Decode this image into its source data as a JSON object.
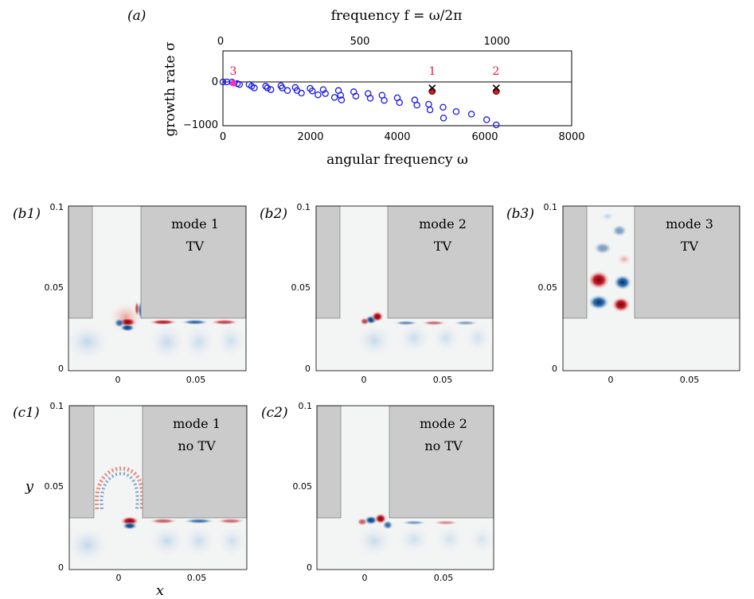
{
  "figure": {
    "panel_a": {
      "label": "(a)",
      "top_axis_label": "frequency f = ω/2π",
      "top_ticks": [
        "0",
        "500",
        "1000"
      ],
      "bottom_axis_label": "angular frequency ω",
      "bottom_ticks": [
        "0",
        "2000",
        "4000",
        "6000",
        "8000"
      ],
      "y_axis_label": "growth rate σ",
      "y_ticks": [
        "0",
        "−1000"
      ],
      "mode_labels": [
        "1",
        "2",
        "3"
      ],
      "colors": {
        "open_markers": "#1a1ae6",
        "mode_marker_red": "#d01c1c",
        "mode_cross": "#111111",
        "mode3_marker": "#ee33cc",
        "mode_label_text": "#e8163a"
      }
    },
    "panels": [
      {
        "label": "(b1)",
        "mode": "mode 1",
        "variant": "TV"
      },
      {
        "label": "(b2)",
        "mode": "mode 2",
        "variant": "TV"
      },
      {
        "label": "(b3)",
        "mode": "mode 3",
        "variant": "TV"
      },
      {
        "label": "(c1)",
        "mode": "mode 1",
        "variant": "no TV"
      },
      {
        "label": "(c2)",
        "mode": "mode 2",
        "variant": "no TV"
      }
    ],
    "panel_axes": {
      "y_ticks": [
        "0.1",
        "0.05",
        "0"
      ],
      "x_ticks": [
        "0",
        "0.05"
      ],
      "x_label": "x",
      "y_label": "y"
    }
  },
  "chart_data": {
    "type": "scatter",
    "xlabel": "angular frequency ω",
    "ylabel": "growth rate σ",
    "top_xlabel": "frequency f = ω/2π",
    "xlim": [
      0,
      8000
    ],
    "ylim": [
      -1000,
      200
    ],
    "series": [
      {
        "marker": "open-circle",
        "points": [
          [
            0,
            0
          ],
          [
            90,
            0
          ],
          [
            210,
            -5
          ],
          [
            330,
            -40
          ],
          [
            380,
            -60
          ],
          [
            600,
            -60
          ],
          [
            660,
            -100
          ],
          [
            720,
            -140
          ],
          [
            980,
            -100
          ],
          [
            1020,
            -140
          ],
          [
            1100,
            -180
          ],
          [
            1330,
            -90
          ],
          [
            1360,
            -140
          ],
          [
            1480,
            -200
          ],
          [
            1660,
            -130
          ],
          [
            1700,
            -200
          ],
          [
            1800,
            -260
          ],
          [
            2000,
            -150
          ],
          [
            2050,
            -210
          ],
          [
            2180,
            -300
          ],
          [
            2300,
            -180
          ],
          [
            2350,
            -270
          ],
          [
            2560,
            -360
          ],
          [
            2650,
            -200
          ],
          [
            2700,
            -310
          ],
          [
            2720,
            -420
          ],
          [
            3000,
            -230
          ],
          [
            3050,
            -330
          ],
          [
            3330,
            -270
          ],
          [
            3380,
            -380
          ],
          [
            3650,
            -310
          ],
          [
            3700,
            -430
          ],
          [
            4000,
            -370
          ],
          [
            4050,
            -480
          ],
          [
            4400,
            -420
          ],
          [
            4450,
            -540
          ],
          [
            4720,
            -520
          ],
          [
            4750,
            -650
          ],
          [
            5050,
            -590
          ],
          [
            5060,
            -840
          ],
          [
            5350,
            -690
          ],
          [
            5700,
            -750
          ],
          [
            6050,
            -880
          ],
          [
            6270,
            -1000
          ]
        ]
      },
      {
        "name": "1",
        "marker": "filled-red-with-cross",
        "points": [
          [
            4800,
            -180
          ]
        ]
      },
      {
        "name": "2",
        "marker": "filled-red-with-cross",
        "points": [
          [
            6270,
            -180
          ]
        ]
      },
      {
        "name": "3",
        "marker": "filled-magenta",
        "points": [
          [
            240,
            -30
          ]
        ]
      }
    ],
    "grid": false
  }
}
